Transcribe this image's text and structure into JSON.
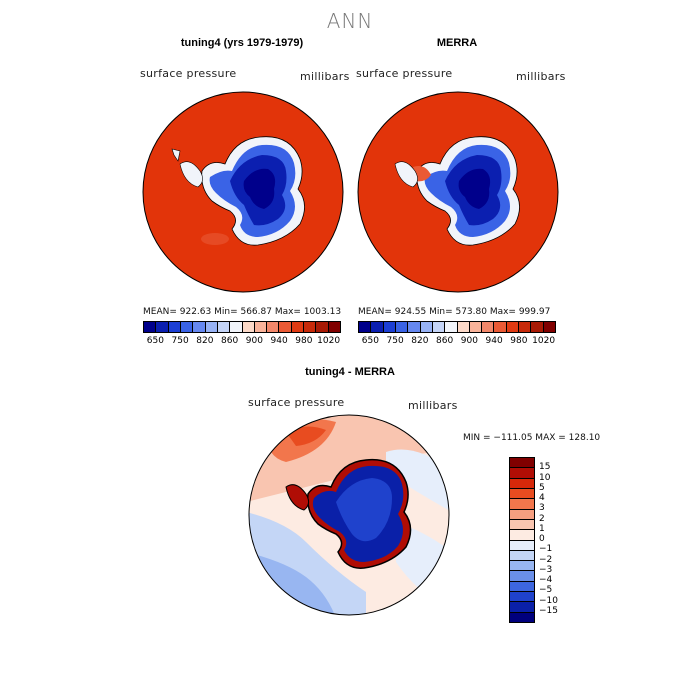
{
  "main_title": "ANN",
  "panel_left": {
    "title": "tuning4 (yrs 1979-1979)",
    "field": "surface pressure",
    "units": "millibars",
    "stats": "MEAN= 922.63   Min= 566.87   Max= 1003.13"
  },
  "panel_right": {
    "title": "MERRA",
    "field": "surface pressure",
    "units": "millibars",
    "stats": "MEAN= 924.55   Min= 573.80   Max= 999.97"
  },
  "panel_diff": {
    "title": "tuning4 - MERRA",
    "field": "surface pressure",
    "units": "millibars",
    "stats": "MIN = −111.05 MAX = 128.10"
  },
  "colorbar_top": {
    "colors": [
      "#00008b",
      "#0b1fb0",
      "#1c3fd4",
      "#3a63e6",
      "#6688f0",
      "#97b2f5",
      "#c4d4f7",
      "#f1f4fa",
      "#fcd9c8",
      "#f9b39a",
      "#f2876a",
      "#ea5a35",
      "#e03a12",
      "#c72a0a",
      "#a81a05",
      "#800000"
    ],
    "labels": [
      "650",
      "750",
      "820",
      "860",
      "900",
      "940",
      "980",
      "1020"
    ]
  },
  "colorbar_diff": {
    "colors": [
      "#800000",
      "#b00d05",
      "#d6280a",
      "#e84c20",
      "#f2764c",
      "#f69f80",
      "#f9c5b0",
      "#fdebe2",
      "#e6eefb",
      "#c4d6f6",
      "#98b6f1",
      "#6a8fe9",
      "#3d66df",
      "#1f42cc",
      "#0a20a8",
      "#00007d"
    ],
    "labels": [
      "15",
      "10",
      "5",
      "4",
      "3",
      "2",
      "1",
      "0",
      "−1",
      "−2",
      "−3",
      "−4",
      "−5",
      "−10",
      "−15"
    ]
  }
}
